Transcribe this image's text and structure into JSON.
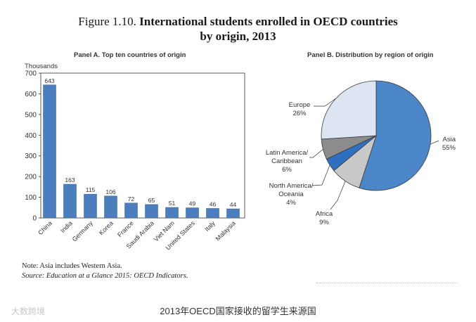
{
  "figure": {
    "number": "Figure 1.10.",
    "title_line1": "International students enrolled in OECD countries",
    "title_line2": "by origin, 2013"
  },
  "colors": {
    "bar": "#4a7ebf",
    "pie_asia": "#4a86c8",
    "pie_africa": "#c8c8c8",
    "pie_na": "#2f6fc0",
    "pie_latam": "#8c8c8c",
    "pie_europe": "#dde4f2",
    "axis": "#333333"
  },
  "chart_data": [
    {
      "type": "bar",
      "title": "Panel A. Top ten countries of origin",
      "ylabel": "Thousands",
      "ylim": [
        0,
        700
      ],
      "yticks": [
        0,
        100,
        200,
        300,
        400,
        500,
        600,
        700
      ],
      "categories": [
        "China",
        "India",
        "Germany",
        "Korea",
        "France",
        "Saudi Arabia",
        "Viet Nam",
        "United States",
        "Italy",
        "Malaysia"
      ],
      "values": [
        643,
        163,
        115,
        106,
        72,
        65,
        51,
        49,
        46,
        44
      ]
    },
    {
      "type": "pie",
      "title": "Panel B. Distribution by region of origin",
      "slices": [
        {
          "label": "Asia",
          "value": 55,
          "display": "55%"
        },
        {
          "label": "Africa",
          "value": 9,
          "display": "9%"
        },
        {
          "label": "North America/ Oceania",
          "value": 4,
          "display": "4%"
        },
        {
          "label": "Latin America/ Caribbean",
          "value": 6,
          "display": "6%"
        },
        {
          "label": "Europe",
          "value": 26,
          "display": "26%"
        }
      ]
    }
  ],
  "notes": {
    "note": "Note: Asia includes Western Asia.",
    "source": "Source: Education at a Glance 2015: OECD Indicators."
  },
  "caption": "2013年OECD国家接收的留学生来源国",
  "watermark": "大数跨境"
}
